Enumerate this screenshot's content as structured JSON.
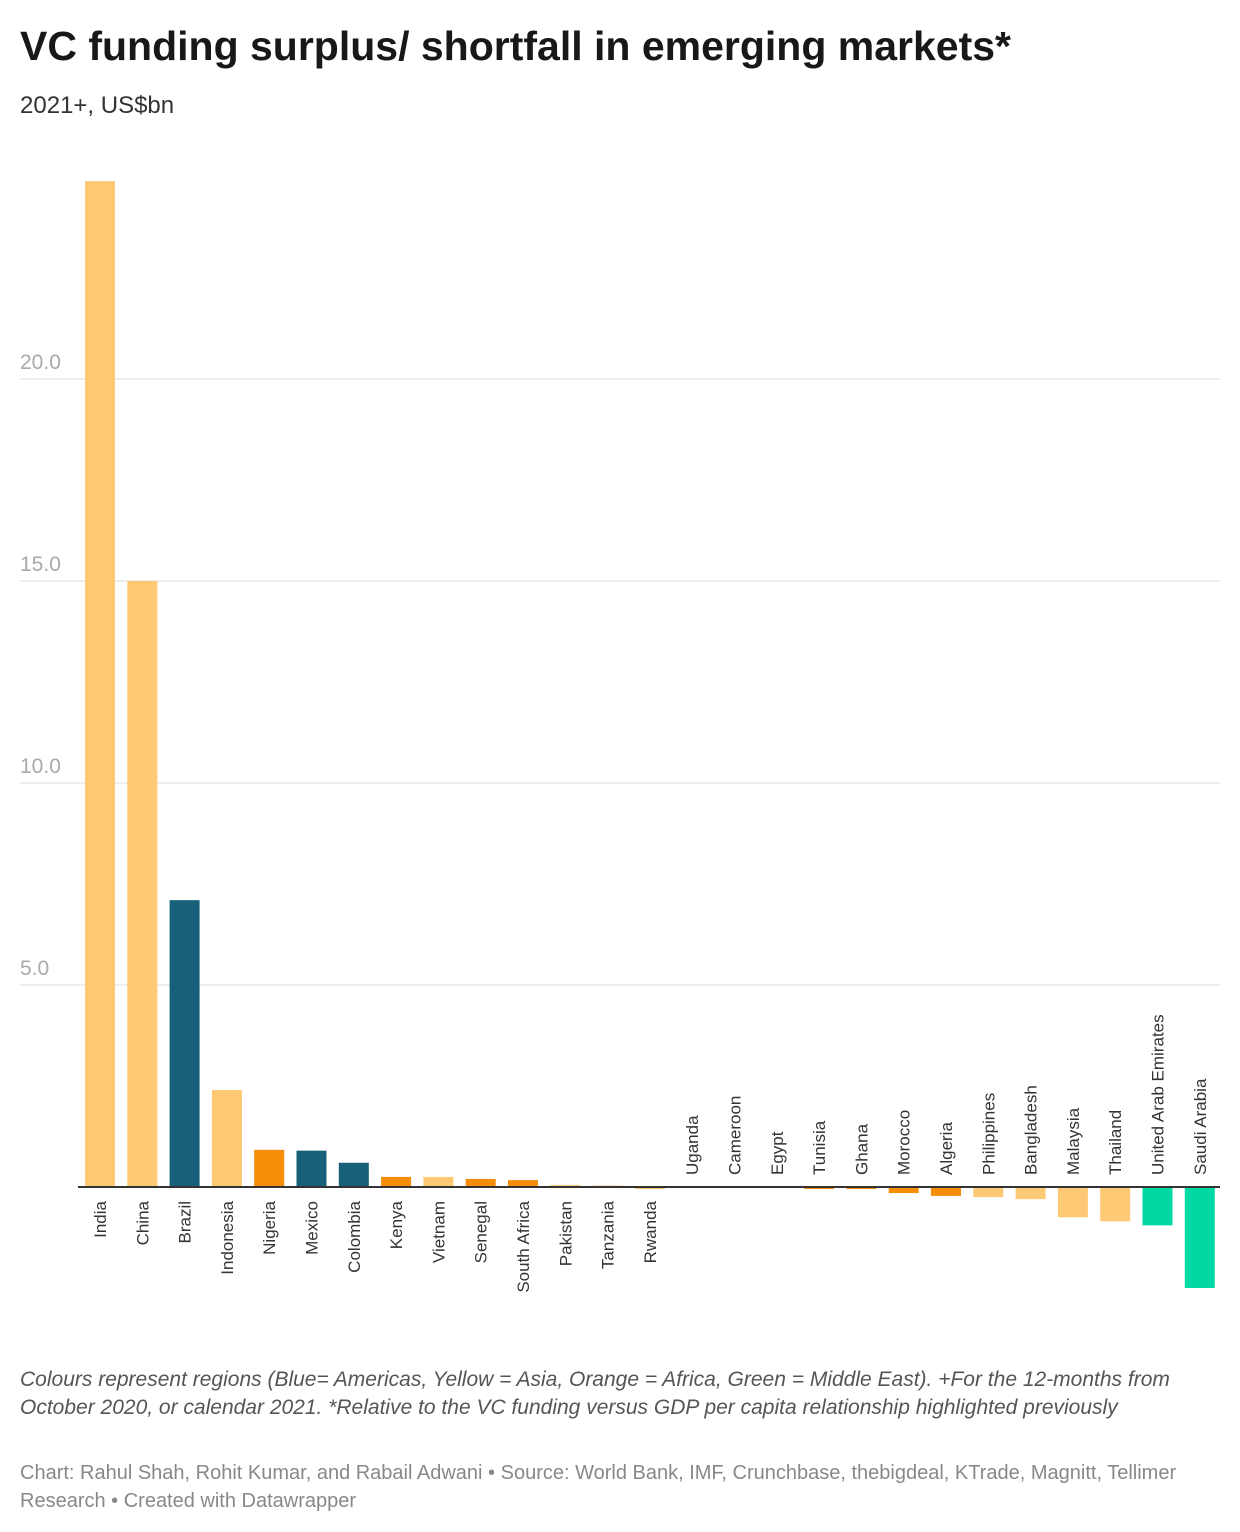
{
  "header": {
    "title": "VC funding surplus/ shortfall in emerging markets*",
    "subtitle": "2021+, US$bn"
  },
  "footer": {
    "note": "Colours represent regions (Blue= Americas, Yellow = Asia, Orange = Africa, Green = Middle East). +For the 12-months from October 2020, or calendar 2021. *Relative to the VC funding versus GDP per capita relationship highlighted previously",
    "credits": "Chart: Rahul Shah, Rohit Kumar, and Rabail Adwani • Source: World Bank, IMF, Crunchbase, thebigdeal, KTrade, Magnitt, Tellimer Research • Created with Datawrapper"
  },
  "chart_data": {
    "type": "bar",
    "title": "VC funding surplus/ shortfall in emerging markets*",
    "subtitle": "2021+, US$bn",
    "xlabel": "",
    "ylabel": "",
    "ylim": [
      -2.5,
      25
    ],
    "yticks": [
      "5.0",
      "10.0",
      "15.0",
      "20.0"
    ],
    "grid": true,
    "legend": "none",
    "colors": {
      "Americas": "#17607a",
      "Asia": "#fec975",
      "Africa": "#f68d07",
      "Middle East": "#00d9a3"
    },
    "categories": [
      "India",
      "China",
      "Brazil",
      "Indonesia",
      "Nigeria",
      "Mexico",
      "Colombia",
      "Kenya",
      "Vietnam",
      "Senegal",
      "South Africa",
      "Pakistan",
      "Tanzania",
      "Rwanda",
      "Uganda",
      "Cameroon",
      "Egypt",
      "Tunisia",
      "Ghana",
      "Morocco",
      "Algeria",
      "Philippines",
      "Bangladesh",
      "Malaysia",
      "Thailand",
      "United Arab Emirates",
      "Saudi Arabia"
    ],
    "values": [
      24.9,
      15.0,
      7.1,
      2.4,
      0.92,
      0.9,
      0.6,
      0.25,
      0.25,
      0.2,
      0.17,
      0.05,
      0.03,
      0.01,
      0.0,
      0.0,
      0.0,
      -0.05,
      -0.05,
      -0.15,
      -0.22,
      -0.25,
      -0.3,
      -0.75,
      -0.85,
      -0.95,
      -2.5
    ],
    "regions": [
      "Asia",
      "Asia",
      "Americas",
      "Asia",
      "Africa",
      "Americas",
      "Americas",
      "Africa",
      "Asia",
      "Africa",
      "Africa",
      "Asia",
      "Africa",
      "Africa",
      "Africa",
      "Africa",
      "Africa",
      "Africa",
      "Africa",
      "Africa",
      "Africa",
      "Asia",
      "Asia",
      "Asia",
      "Asia",
      "Middle East",
      "Middle East"
    ]
  }
}
